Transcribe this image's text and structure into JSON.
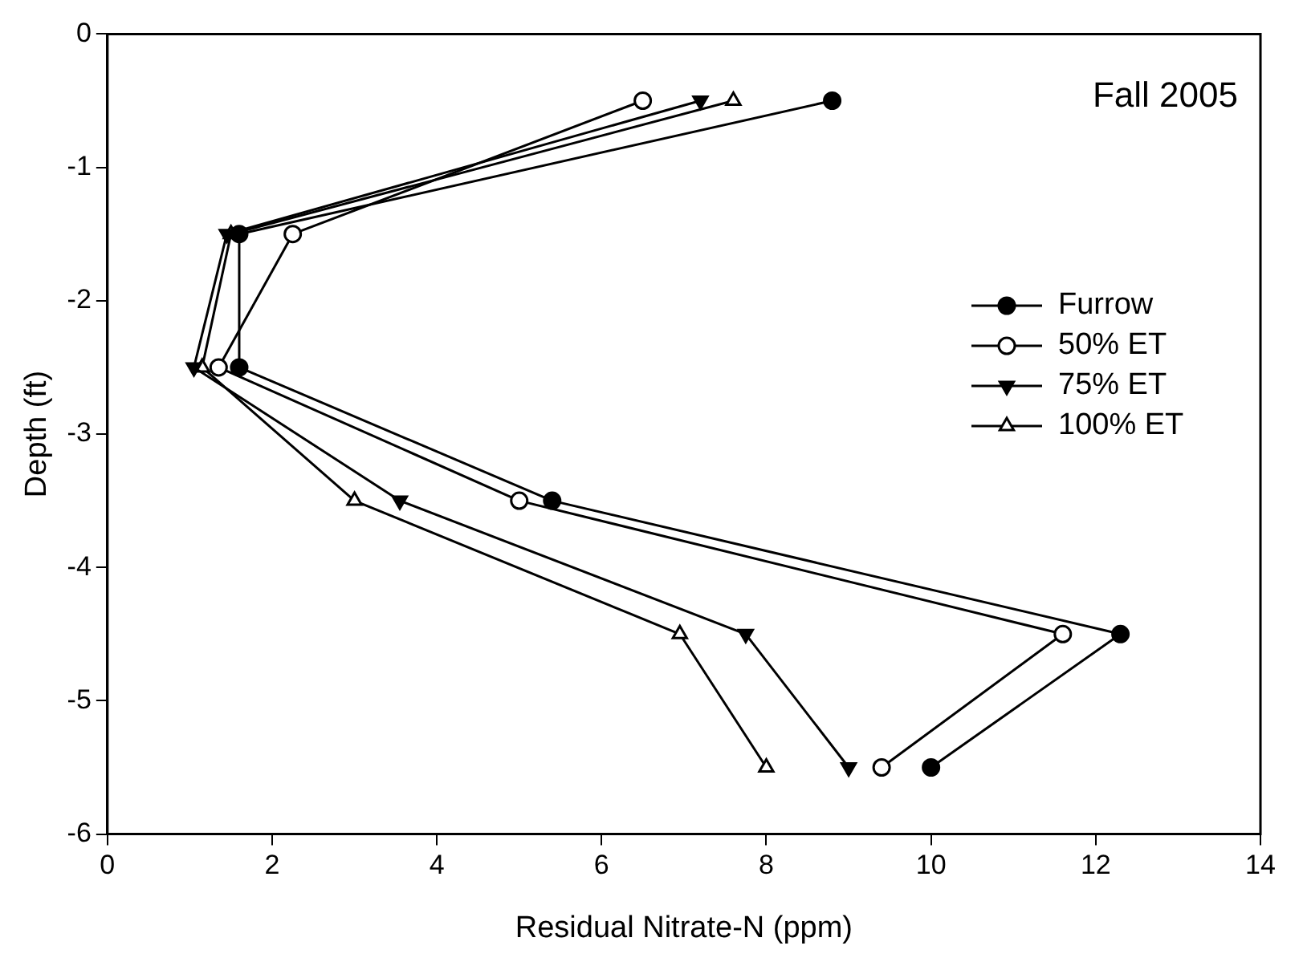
{
  "chart_data": {
    "type": "line",
    "xlabel": "Residual Nitrate-N (ppm)",
    "ylabel": "Depth (ft)",
    "annotations": [
      "Fall 2005"
    ],
    "xlim": [
      0,
      14
    ],
    "xticks": [
      0,
      2,
      4,
      6,
      8,
      10,
      12,
      14
    ],
    "ylim": [
      -6,
      0
    ],
    "yticks": [
      -6,
      -5,
      -4,
      -3,
      -2,
      -1,
      0
    ],
    "grid": false,
    "legend": "right",
    "line_style": "solid",
    "series": [
      {
        "name": "Furrow",
        "color": "#000000",
        "marker": "circle",
        "x": [
          8.8,
          1.6,
          1.6,
          5.4,
          12.3,
          10.0
        ],
        "values": [
          -0.5,
          -1.5,
          -2.5,
          -3.5,
          -4.5,
          -5.5
        ]
      },
      {
        "name": "50% ET",
        "color": "#000000",
        "marker": "circle-open",
        "x": [
          6.5,
          2.25,
          1.35,
          5.0,
          11.6,
          9.4
        ],
        "values": [
          -0.5,
          -1.5,
          -2.5,
          -3.5,
          -4.5,
          -5.5
        ]
      },
      {
        "name": "75% ET",
        "color": "#000000",
        "marker": "triangle-down",
        "x": [
          7.2,
          1.45,
          1.05,
          3.55,
          7.75,
          9.0
        ],
        "values": [
          -0.5,
          -1.5,
          -2.5,
          -3.5,
          -4.5,
          -5.5
        ]
      },
      {
        "name": "100% ET",
        "color": "#000000",
        "marker": "triangle-open",
        "x": [
          7.6,
          1.5,
          1.15,
          3.0,
          6.95,
          8.0
        ],
        "values": [
          -0.5,
          -1.5,
          -2.5,
          -3.5,
          -4.5,
          -5.5
        ]
      }
    ]
  }
}
